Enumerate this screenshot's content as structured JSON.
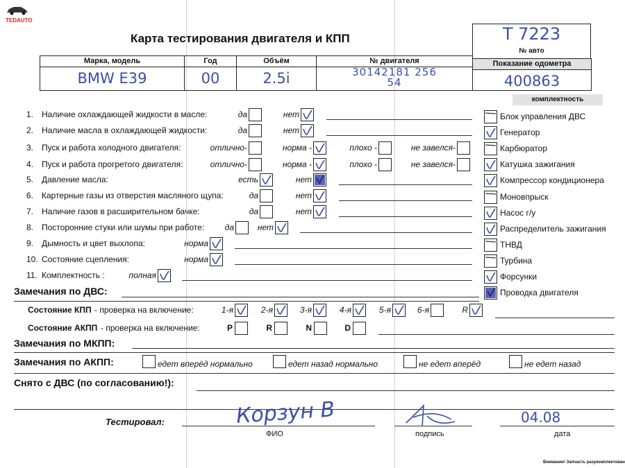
{
  "logo": {
    "text": "TEDAUTO",
    "icon": "car-icon"
  },
  "title": "Карта тестирования двигателя  и КПП",
  "car_no": {
    "value": "T 7223",
    "label": "№ авто"
  },
  "info_table": {
    "headers": [
      "Марка, модель",
      "Год",
      "Объём",
      "№ двигателя",
      "Показание одометра"
    ],
    "values": [
      "BMW E39",
      "00",
      "2.5i",
      "30142181 25654",
      "400863"
    ]
  },
  "checklist": [
    {
      "num": "1.",
      "label": "Наличие охлаждающей жидкости в масле:",
      "options": [
        {
          "label": "да",
          "mark": ""
        },
        {
          "label": "нет",
          "mark": "check"
        }
      ]
    },
    {
      "num": "2.",
      "label": "Наличие масла в охлаждающей жидкости:",
      "options": [
        {
          "label": "да",
          "mark": ""
        },
        {
          "label": "нет",
          "mark": "check"
        }
      ]
    },
    {
      "num": "3.",
      "label": "Пуск и работа холодного двигателя:",
      "options": [
        {
          "label": "отлично-",
          "mark": ""
        },
        {
          "label": "норма -",
          "mark": "check"
        },
        {
          "label": "плохо -",
          "mark": ""
        },
        {
          "label": "не завелся-",
          "mark": ""
        }
      ]
    },
    {
      "num": "4.",
      "label": "Пуск и работа прогретого двигателя:",
      "options": [
        {
          "label": "отлично-",
          "mark": ""
        },
        {
          "label": "норма -",
          "mark": "check"
        },
        {
          "label": "плохо -",
          "mark": ""
        },
        {
          "label": "не завелся-",
          "mark": ""
        }
      ]
    },
    {
      "num": "5.",
      "label": "Давление масла:",
      "options": [
        {
          "label": "есть",
          "mark": "check"
        },
        {
          "label": "нет",
          "mark": "filled"
        }
      ]
    },
    {
      "num": "6.",
      "label": "Картерные газы из отверстия масляного щупа:",
      "options": [
        {
          "label": "да",
          "mark": ""
        },
        {
          "label": "нет",
          "mark": "check"
        }
      ]
    },
    {
      "num": "7.",
      "label": "Наличие газов в расширительном бачке:",
      "options": [
        {
          "label": "да",
          "mark": ""
        },
        {
          "label": "нет",
          "mark": "check"
        }
      ]
    },
    {
      "num": "8.",
      "label": "Посторонние стуки или шумы при работе:",
      "options": [
        {
          "label": "да",
          "mark": ""
        },
        {
          "label": "нет",
          "mark": "check"
        }
      ]
    },
    {
      "num": "9.",
      "label": "Дымность и цвет выхлопа:",
      "options": [
        {
          "label": "норма",
          "mark": "check"
        }
      ]
    },
    {
      "num": "10.",
      "label": "Состояние сцепления:",
      "options": [
        {
          "label": "норма",
          "mark": "check"
        }
      ]
    },
    {
      "num": "11.",
      "label": "Комплектность :",
      "options": [
        {
          "label": "полная",
          "mark": "check"
        }
      ]
    }
  ],
  "completeness": {
    "header": "комплектность",
    "items": [
      {
        "label": "Блок управления ДВС",
        "mark": "dash"
      },
      {
        "label": "Генератор",
        "mark": "check"
      },
      {
        "label": "Карбюратор",
        "mark": "dash"
      },
      {
        "label": "Катушка зажигания",
        "mark": "check"
      },
      {
        "label": "Компрессор кондиционера",
        "mark": "check"
      },
      {
        "label": "Моновпрыск",
        "mark": "dash"
      },
      {
        "label": "Насос г/у",
        "mark": "check"
      },
      {
        "label": "Распределитель зажигания",
        "mark": "check"
      },
      {
        "label": "ТНВД",
        "mark": "dash"
      },
      {
        "label": "Турбина",
        "mark": "dash"
      },
      {
        "label": "Форсунки",
        "mark": "check"
      },
      {
        "label": "Проводка двигателя",
        "mark": "filled"
      }
    ]
  },
  "engine_remarks": "Замечания по ДВС:",
  "manual_gearbox": {
    "label": "Состояние КПП",
    "suffix": " - проверка на включение:",
    "gears": [
      {
        "label": "1-я",
        "mark": "check"
      },
      {
        "label": "2-я",
        "mark": "check"
      },
      {
        "label": "3-я",
        "mark": "check"
      },
      {
        "label": "4-я",
        "mark": "check"
      },
      {
        "label": "5-я",
        "mark": "check"
      },
      {
        "label": "6-я",
        "mark": ""
      },
      {
        "label": "R",
        "mark": "check"
      }
    ]
  },
  "auto_gearbox": {
    "label": "Состояние АКПП",
    "suffix": " - проверка на включение:",
    "gears": [
      {
        "label": "P",
        "mark": ""
      },
      {
        "label": "R",
        "mark": ""
      },
      {
        "label": "N",
        "mark": ""
      },
      {
        "label": "D",
        "mark": ""
      }
    ]
  },
  "manual_remarks": "Замечания по МКПП:",
  "auto_remarks": {
    "label": "Замечания по АКПП:",
    "options": [
      "едет вперёд нормально",
      "едет назад нормально",
      "не едет вперёд",
      "не едет назад"
    ]
  },
  "removed": "Снято с ДВС (по согласованию!):",
  "tested": {
    "label": "Тестировал:",
    "name": "Корзун В",
    "date": "04.08",
    "fio_label": "ФИО",
    "signature_label": "подпись",
    "date_label": "дата"
  },
  "footer_note": "Внимание! Запчасть разукомплектована!"
}
